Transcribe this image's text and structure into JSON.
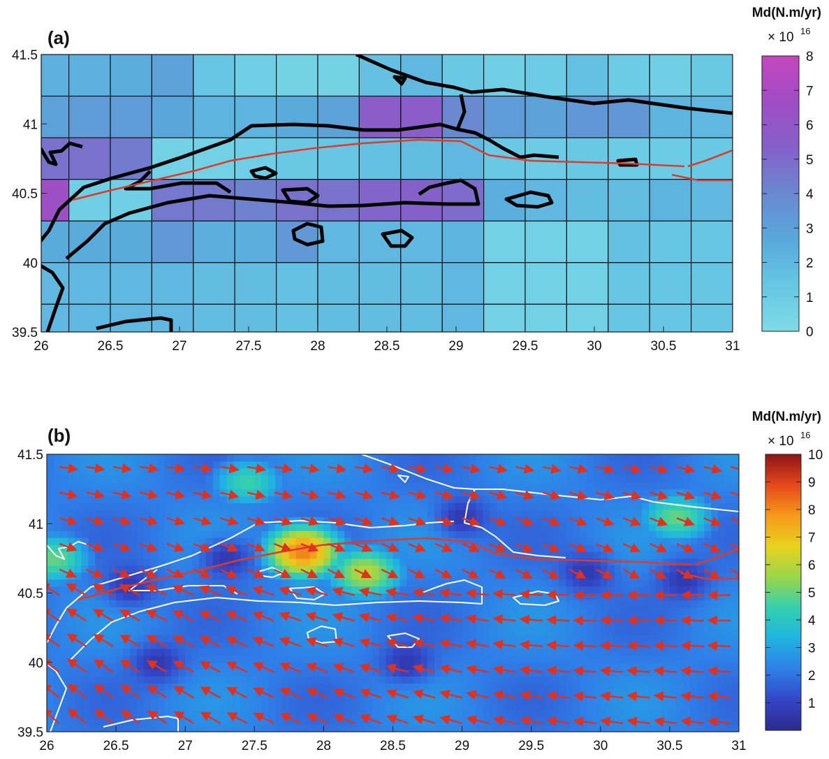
{
  "chart_data": [
    {
      "type": "heatmap",
      "panel_label": "(a)",
      "xlim": [
        26,
        31
      ],
      "ylim": [
        39.5,
        41.5
      ],
      "xticks": [
        "26",
        "26.5",
        "27",
        "27.5",
        "28",
        "28.5",
        "29",
        "29.5",
        "30",
        "30.5",
        "31"
      ],
      "yticks": [
        "39.5",
        "40",
        "40.5",
        "41",
        "41.5"
      ],
      "x_edges": [
        26,
        26.2,
        26.5,
        26.8,
        27.1,
        27.4,
        27.7,
        28.0,
        28.3,
        28.6,
        28.9,
        29.2,
        29.5,
        29.8,
        30.1,
        30.4,
        30.7,
        31.0
      ],
      "y_edges": [
        41.5,
        41.2,
        40.9,
        40.6,
        40.3,
        40.0,
        39.7,
        39.5
      ],
      "values": [
        [
          2.3,
          2.3,
          2.5,
          3.0,
          1.4,
          0.8,
          0.6,
          0.6,
          1.6,
          2.0,
          1.2,
          0.8,
          1.0,
          1.6,
          1.0,
          0.8,
          1.2
        ],
        [
          3.0,
          3.2,
          3.2,
          2.8,
          2.2,
          2.2,
          2.6,
          3.0,
          5.6,
          5.6,
          4.0,
          3.2,
          3.0,
          3.4,
          3.4,
          2.2,
          2.0
        ],
        [
          4.8,
          4.8,
          4.4,
          0.7,
          0.7,
          0.9,
          1.2,
          1.4,
          1.6,
          1.8,
          2.0,
          1.2,
          1.0,
          1.2,
          1.0,
          1.0,
          1.2
        ],
        [
          6.5,
          0.8,
          0.8,
          4.5,
          4.5,
          4.2,
          4.8,
          4.8,
          5.2,
          5.4,
          5.0,
          2.4,
          2.0,
          1.8,
          1.8,
          2.2,
          2.0
        ],
        [
          2.6,
          2.6,
          2.6,
          3.3,
          2.4,
          2.4,
          3.3,
          2.0,
          2.0,
          2.0,
          2.2,
          0.7,
          0.7,
          0.7,
          1.6,
          1.4,
          1.4
        ],
        [
          2.0,
          2.0,
          2.0,
          2.0,
          1.8,
          1.8,
          1.6,
          1.8,
          1.8,
          1.8,
          2.0,
          0.7,
          0.7,
          0.7,
          1.4,
          1.4,
          1.4
        ],
        [
          2.0,
          2.0,
          2.0,
          2.0,
          1.8,
          1.8,
          1.6,
          1.8,
          1.8,
          1.8,
          2.0,
          0.7,
          0.7,
          0.7,
          1.4,
          1.4,
          1.4
        ]
      ],
      "colorbar": {
        "title": "Md(N.m/yr)",
        "multiplier": "× 10",
        "exponent": "16",
        "min": 0,
        "max": 8,
        "ticks": [
          "0",
          "1",
          "2",
          "3",
          "4",
          "5",
          "6",
          "7",
          "8"
        ],
        "colors": [
          "#7fdbe6",
          "#67c7e4",
          "#58a9dc",
          "#6a88d0",
          "#8461c9",
          "#a04cc3",
          "#c447bd"
        ]
      },
      "coastline_color": "#000000",
      "fault_color": "#e03a2a"
    },
    {
      "type": "heatmap",
      "panel_label": "(b)",
      "xlim": [
        26,
        31
      ],
      "ylim": [
        39.5,
        41.5
      ],
      "xticks": [
        "26",
        "26.5",
        "27",
        "27.5",
        "28",
        "28.5",
        "29",
        "29.5",
        "30",
        "30.5",
        "31"
      ],
      "yticks": [
        "39.5",
        "40",
        "40.5",
        "41",
        "41.5"
      ],
      "field": {
        "background": 2.2,
        "hotspots": [
          {
            "x": 27.85,
            "y": 40.8,
            "value": 8.2
          },
          {
            "x": 28.3,
            "y": 40.65,
            "value": 6.0
          },
          {
            "x": 26.05,
            "y": 40.75,
            "value": 5.0
          },
          {
            "x": 30.55,
            "y": 41.05,
            "value": 5.0
          },
          {
            "x": 27.45,
            "y": 41.3,
            "value": 4.5
          }
        ],
        "lows": [
          {
            "x": 26.8,
            "y": 40.0,
            "value": 0.6
          },
          {
            "x": 28.6,
            "y": 40.0,
            "value": 0.6
          },
          {
            "x": 29.9,
            "y": 40.65,
            "value": 0.6
          },
          {
            "x": 30.6,
            "y": 40.6,
            "value": 0.6
          },
          {
            "x": 26.6,
            "y": 40.55,
            "value": 0.6
          },
          {
            "x": 29.0,
            "y": 41.05,
            "value": 0.6
          },
          {
            "x": 27.3,
            "y": 40.75,
            "value": 0.6
          }
        ]
      },
      "colorbar": {
        "title": "Md(N.m/yr)",
        "multiplier": "× 10",
        "exponent": "16",
        "min": 0,
        "max": 10,
        "ticks": [
          "1",
          "2",
          "3",
          "4",
          "5",
          "6",
          "7",
          "8",
          "9",
          "10"
        ],
        "colors": [
          "#2d2a8c",
          "#3346c8",
          "#2f7fe8",
          "#1fb4e0",
          "#34d0b0",
          "#9ad64a",
          "#e9d21e",
          "#f59a1a",
          "#e5481b",
          "#8e1414"
        ]
      },
      "vector_color": "#e0311f",
      "coastline_color": "#ffffff",
      "fault_color": "#e03a2a"
    }
  ]
}
